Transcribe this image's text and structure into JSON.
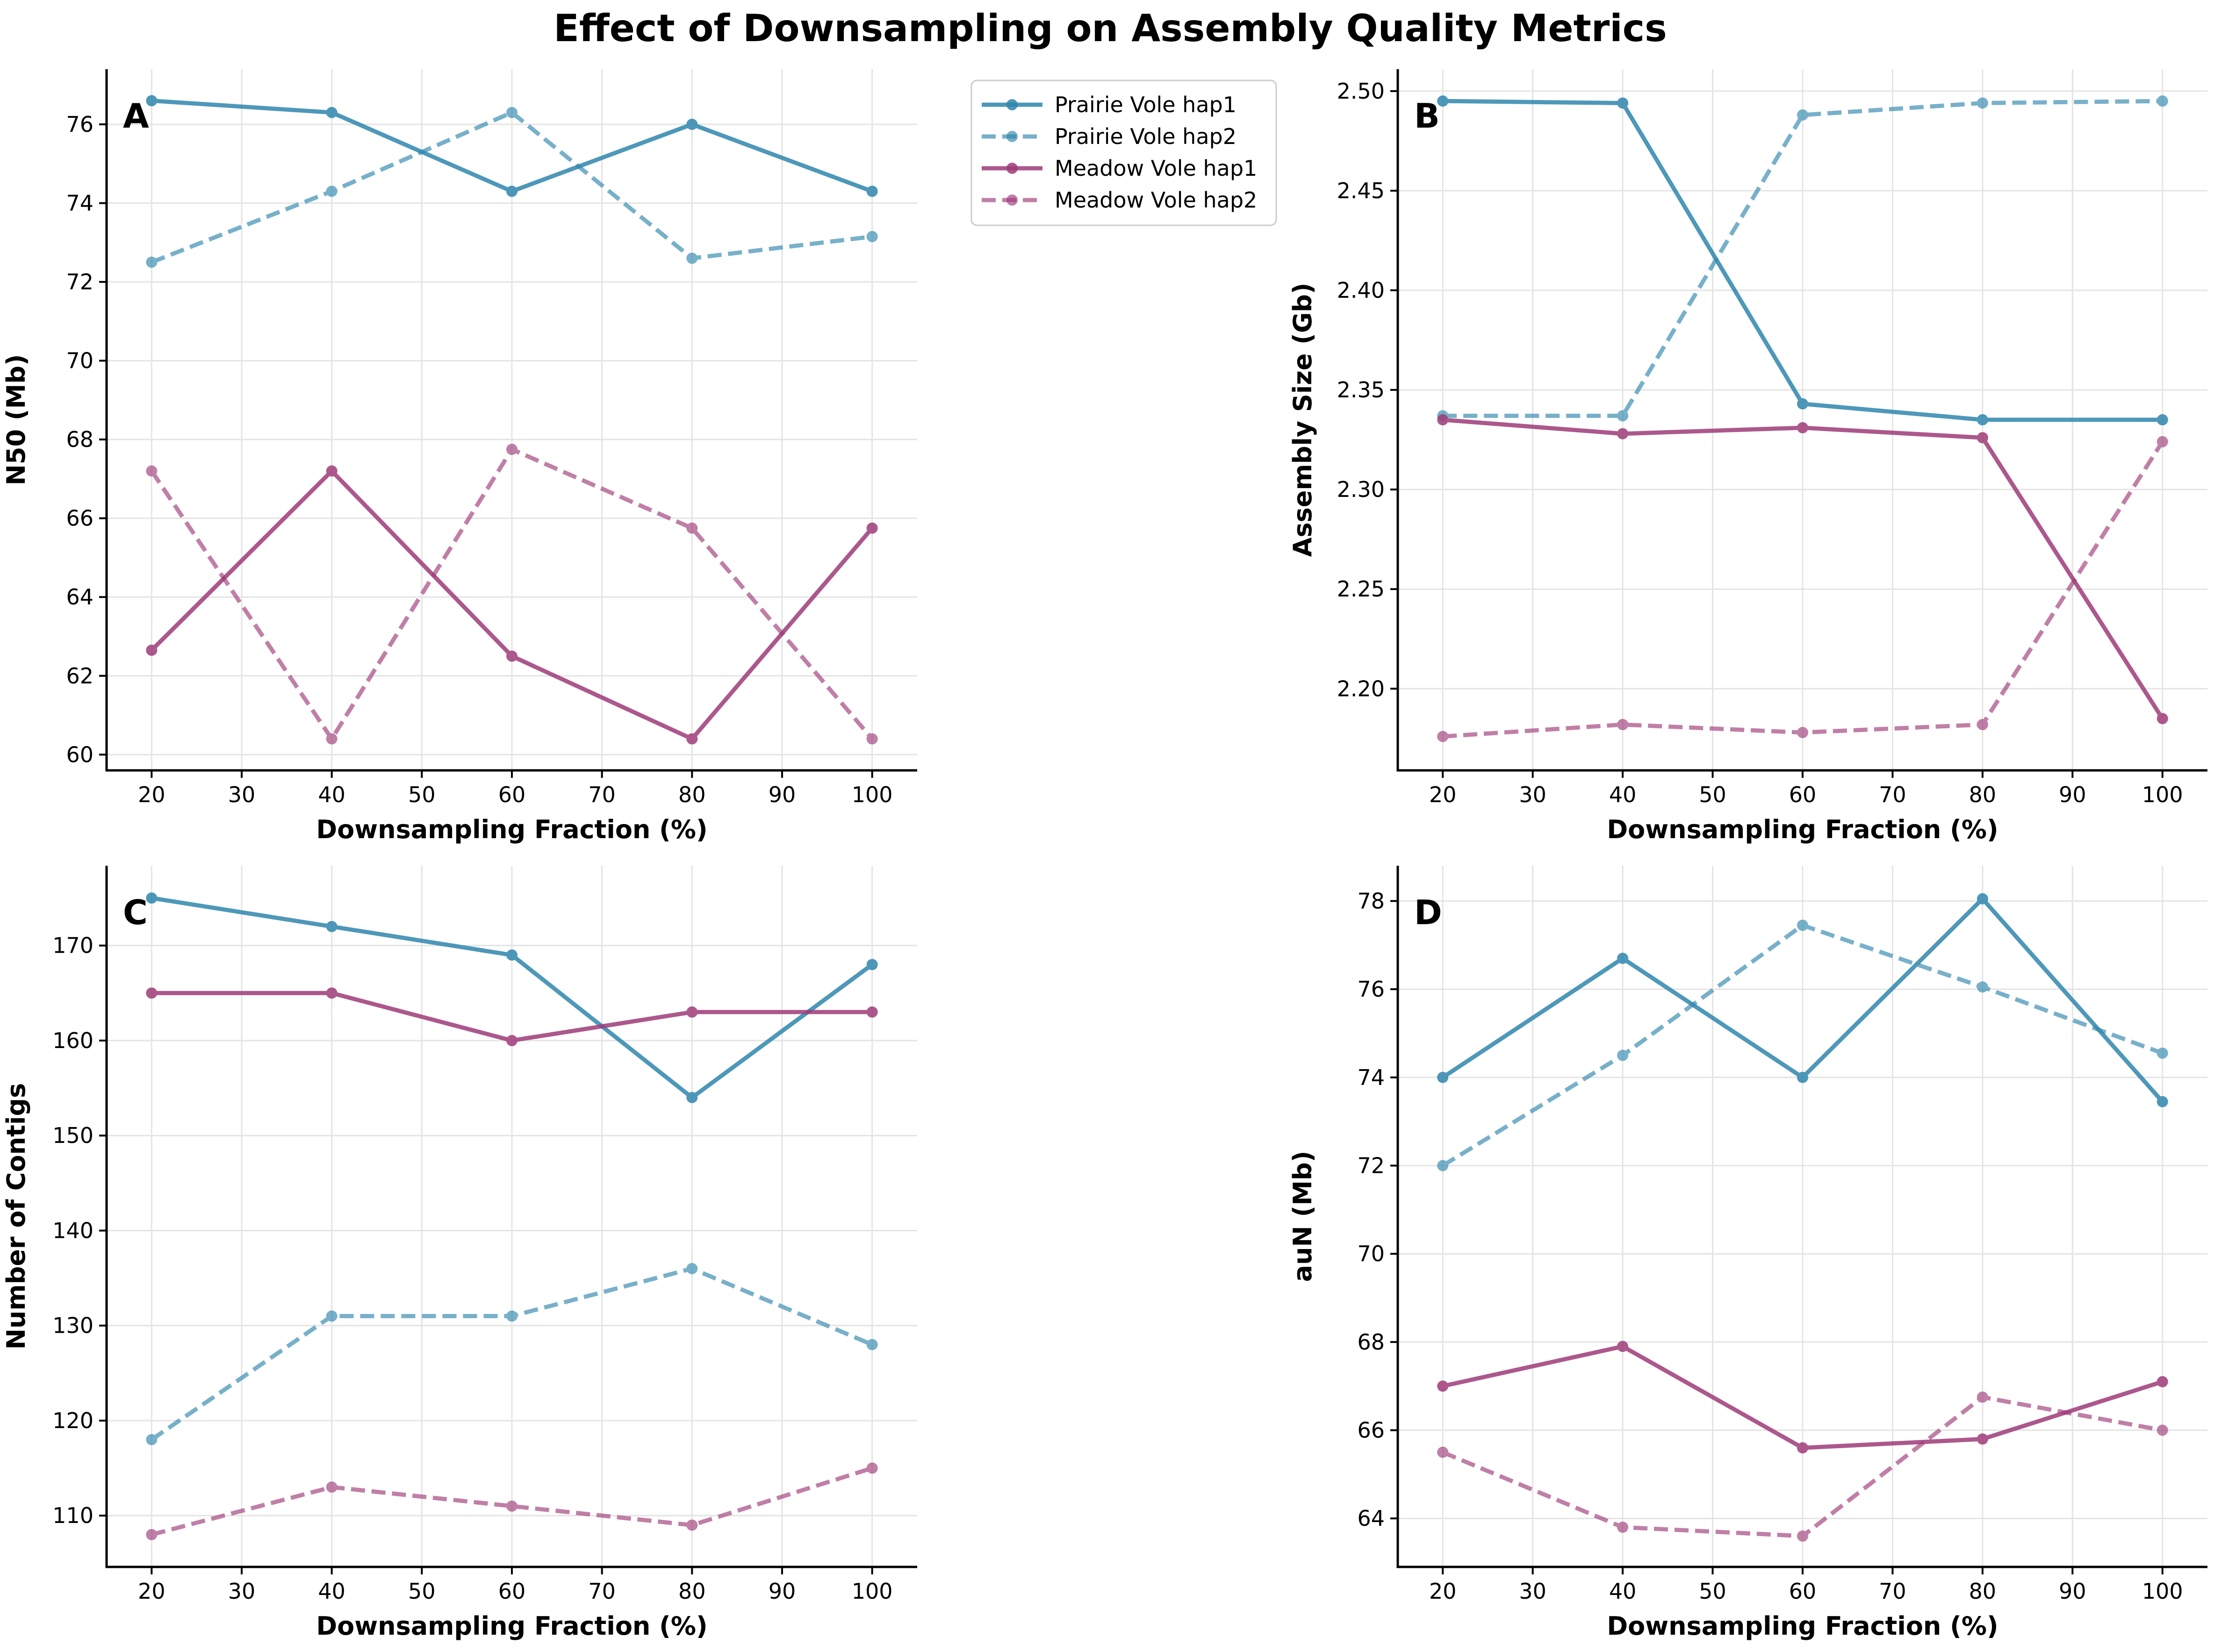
{
  "title": "Effect of Downsampling on Assembly Quality Metrics",
  "colors": {
    "prairie": "#2f86ad",
    "meadow": "#9e3b78"
  },
  "legend": [
    {
      "name": "Prairie Vole hap1",
      "color": "#2f86ad",
      "dash": false,
      "opacity": 0.85
    },
    {
      "name": "Prairie Vole hap2",
      "color": "#2f86ad",
      "dash": true,
      "opacity": 0.65
    },
    {
      "name": "Meadow Vole hap1",
      "color": "#9e3b78",
      "dash": false,
      "opacity": 0.85
    },
    {
      "name": "Meadow Vole hap2",
      "color": "#9e3b78",
      "dash": true,
      "opacity": 0.65
    }
  ],
  "chart_data": [
    {
      "type": "line",
      "panel": "A",
      "xlabel": "Downsampling Fraction (%)",
      "ylabel": "N50 (Mb)",
      "x": [
        20,
        40,
        60,
        80,
        100
      ],
      "xlim": [
        15,
        105
      ],
      "ylim": [
        59.6,
        77.4
      ],
      "xticks": [
        20,
        30,
        40,
        50,
        60,
        70,
        80,
        90,
        100
      ],
      "yticks": [
        60,
        62,
        64,
        66,
        68,
        70,
        72,
        74,
        76
      ],
      "yfmt": 0,
      "legend": "top-right outside",
      "series": [
        {
          "name": "Prairie Vole hap1",
          "values": [
            76.6,
            76.3,
            74.3,
            76.0,
            74.3
          ]
        },
        {
          "name": "Prairie Vole hap2",
          "values": [
            72.5,
            74.3,
            76.3,
            72.6,
            73.15
          ]
        },
        {
          "name": "Meadow Vole hap1",
          "values": [
            62.65,
            67.2,
            62.5,
            60.4,
            65.75
          ]
        },
        {
          "name": "Meadow Vole hap2",
          "values": [
            67.2,
            60.4,
            67.75,
            65.75,
            60.4
          ]
        }
      ]
    },
    {
      "type": "line",
      "panel": "B",
      "xlabel": "Downsampling Fraction (%)",
      "ylabel": "Assembly Size (Gb)",
      "x": [
        20,
        40,
        60,
        80,
        100
      ],
      "xlim": [
        15,
        105
      ],
      "ylim": [
        2.159,
        2.511
      ],
      "xticks": [
        20,
        30,
        40,
        50,
        60,
        70,
        80,
        90,
        100
      ],
      "yticks": [
        2.2,
        2.25,
        2.3,
        2.35,
        2.4,
        2.45,
        2.5
      ],
      "yfmt": 2,
      "series": [
        {
          "name": "Prairie Vole hap1",
          "values": [
            2.495,
            2.494,
            2.343,
            2.335,
            2.335
          ]
        },
        {
          "name": "Prairie Vole hap2",
          "values": [
            2.337,
            2.337,
            2.488,
            2.494,
            2.495
          ]
        },
        {
          "name": "Meadow Vole hap1",
          "values": [
            2.335,
            2.328,
            2.331,
            2.326,
            2.185
          ]
        },
        {
          "name": "Meadow Vole hap2",
          "values": [
            2.176,
            2.182,
            2.178,
            2.182,
            2.324
          ]
        }
      ]
    },
    {
      "type": "line",
      "panel": "C",
      "xlabel": "Downsampling Fraction (%)",
      "ylabel": "Number of Contigs",
      "x": [
        20,
        40,
        60,
        80,
        100
      ],
      "xlim": [
        15,
        105
      ],
      "ylim": [
        104.6,
        178.4
      ],
      "xticks": [
        20,
        30,
        40,
        50,
        60,
        70,
        80,
        90,
        100
      ],
      "yticks": [
        110,
        120,
        130,
        140,
        150,
        160,
        170
      ],
      "yfmt": 0,
      "series": [
        {
          "name": "Prairie Vole hap1",
          "values": [
            175,
            172,
            169,
            154,
            168
          ]
        },
        {
          "name": "Prairie Vole hap2",
          "values": [
            118,
            131,
            131,
            136,
            128
          ]
        },
        {
          "name": "Meadow Vole hap1",
          "values": [
            165,
            165,
            160,
            163,
            163
          ]
        },
        {
          "name": "Meadow Vole hap2",
          "values": [
            108,
            113,
            111,
            109,
            115
          ]
        }
      ]
    },
    {
      "type": "line",
      "panel": "D",
      "xlabel": "Downsampling Fraction (%)",
      "ylabel": "auN (Mb)",
      "x": [
        20,
        40,
        60,
        80,
        100
      ],
      "xlim": [
        15,
        105
      ],
      "ylim": [
        62.9,
        78.8
      ],
      "xticks": [
        20,
        30,
        40,
        50,
        60,
        70,
        80,
        90,
        100
      ],
      "yticks": [
        64,
        66,
        68,
        70,
        72,
        74,
        76,
        78
      ],
      "yfmt": 0,
      "series": [
        {
          "name": "Prairie Vole hap1",
          "values": [
            74.0,
            76.7,
            74.0,
            78.05,
            73.45
          ]
        },
        {
          "name": "Prairie Vole hap2",
          "values": [
            72.0,
            74.5,
            77.45,
            76.05,
            74.55
          ]
        },
        {
          "name": "Meadow Vole hap1",
          "values": [
            67.0,
            67.9,
            65.6,
            65.8,
            67.1
          ]
        },
        {
          "name": "Meadow Vole hap2",
          "values": [
            65.5,
            63.8,
            63.6,
            66.75,
            66.0
          ]
        }
      ]
    }
  ]
}
